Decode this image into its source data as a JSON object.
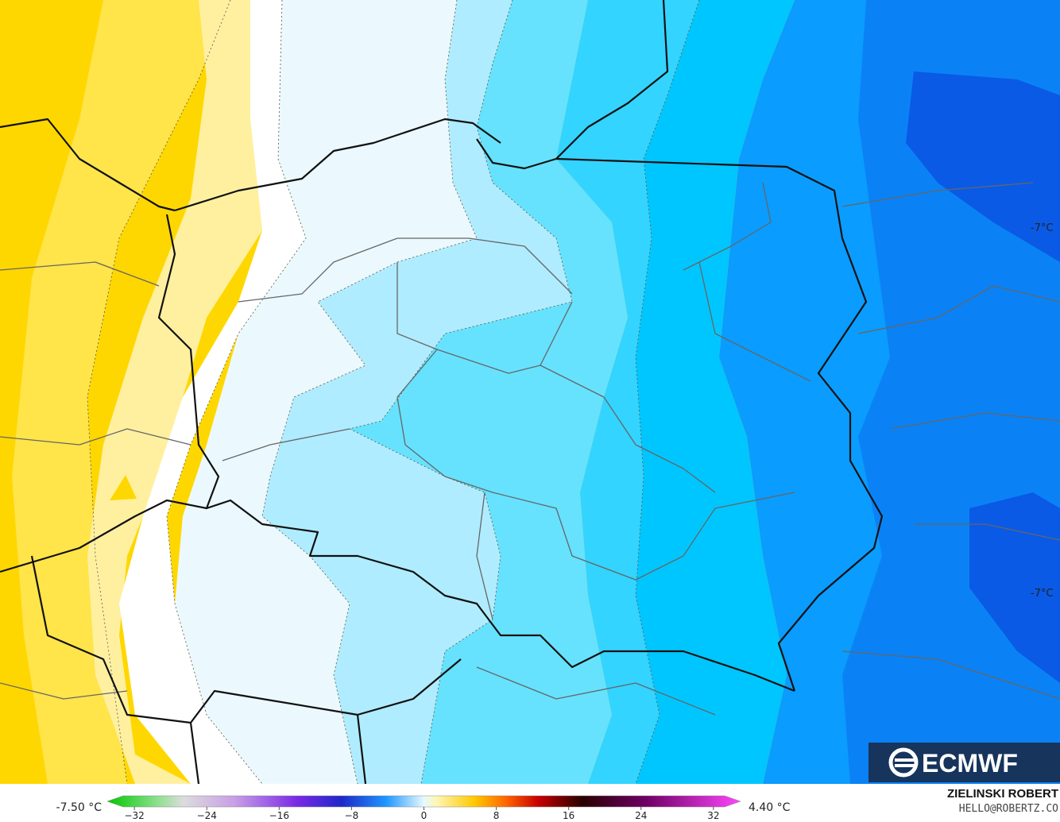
{
  "map": {
    "labels": [
      "-7°C",
      "-7°C"
    ],
    "logo": "ECMWF",
    "author": "ZIELINSKI ROBERT",
    "contact": "HELLO@ROBERTZ.CO"
  },
  "colorbar": {
    "min_label": "-7.50 °C",
    "max_label": "4.40 °C",
    "range": [
      -35,
      35
    ],
    "ticks": [
      {
        "value": -32,
        "label": "−32"
      },
      {
        "value": -24,
        "label": "−24"
      },
      {
        "value": -16,
        "label": "−16"
      },
      {
        "value": -8,
        "label": "−8"
      },
      0,
      8,
      16,
      24,
      32
    ]
  }
}
